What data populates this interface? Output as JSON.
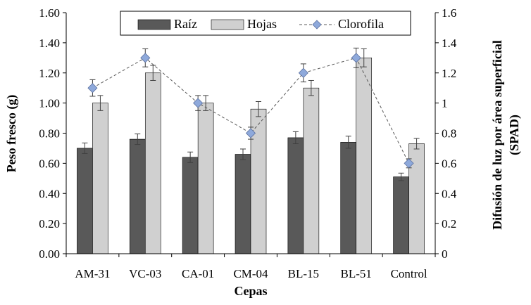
{
  "chart_data": {
    "type": "bar",
    "categories": [
      "AM-31",
      "VC-03",
      "CA-01",
      "CM-04",
      "BL-15",
      "BL-51",
      "Control"
    ],
    "xlabel": "Cepas",
    "ylabel_left": "Peso fresco (g)",
    "ylabel_right": [
      "Difusión de luz por área superficial",
      "(SPAD)"
    ],
    "ylim_left": [
      0,
      1.6
    ],
    "ylim_right": [
      0,
      1.6
    ],
    "yticks_left": [
      "0.00",
      "0.20",
      "0.40",
      "0.60",
      "0.80",
      "1.00",
      "1.20",
      "1.40",
      "1.60"
    ],
    "yticks_right": [
      "0",
      "0.2",
      "0.4",
      "0.6",
      "0.8",
      "1",
      "1.2",
      "1.4",
      "1.6"
    ],
    "legend_position": "top",
    "grid": false,
    "series": [
      {
        "name": "Raíz",
        "kind": "bar",
        "axis": "left",
        "color": "#595959",
        "values": [
          0.7,
          0.76,
          0.64,
          0.66,
          0.77,
          0.74,
          0.51
        ],
        "errors": [
          0.035,
          0.035,
          0.035,
          0.035,
          0.04,
          0.04,
          0.025
        ]
      },
      {
        "name": "Hojas",
        "kind": "bar",
        "axis": "left",
        "color": "#d0d0d0",
        "values": [
          1.0,
          1.2,
          1.0,
          0.96,
          1.1,
          1.3,
          0.73
        ],
        "errors": [
          0.05,
          0.05,
          0.05,
          0.05,
          0.05,
          0.06,
          0.035
        ]
      },
      {
        "name": "Clorofila",
        "kind": "line",
        "axis": "right",
        "color": "#8ea9db",
        "line_color": "#595959",
        "line_style": "dashed",
        "marker": "diamond",
        "values": [
          1.1,
          1.3,
          1.0,
          0.8,
          1.2,
          1.3,
          0.6
        ],
        "errors": [
          0.055,
          0.06,
          0.05,
          0.04,
          0.06,
          0.065,
          0.03
        ]
      }
    ]
  }
}
